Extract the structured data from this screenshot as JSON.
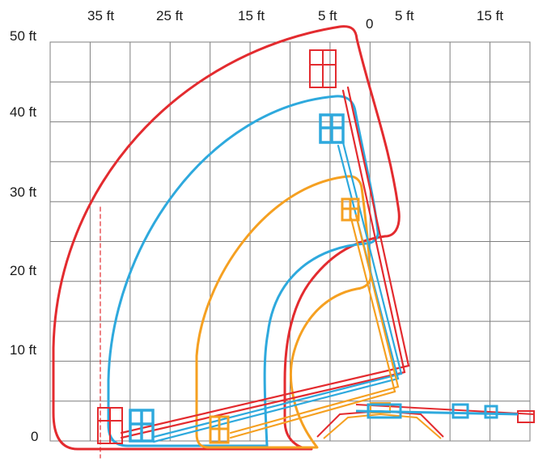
{
  "x_axis_labels": [
    "35 ft",
    "25 ft",
    "15 ft",
    "5 ft",
    "0",
    "5 ft",
    "15 ft"
  ],
  "y_axis_labels": [
    "50 ft",
    "40 ft",
    "30 ft",
    "20 ft",
    "10 ft",
    "0"
  ],
  "colors": {
    "grid": "#7f7f7f",
    "envelope_max": "#e32b2f",
    "envelope_mid": "#2ea9dd",
    "envelope_low": "#f5a021",
    "background": "#ffffff"
  },
  "envelopes": [
    {
      "color_key": "envelope_max",
      "icon": "work-platform-icon",
      "max_height_ft": 50,
      "max_outreach_ft": 40
    },
    {
      "color_key": "envelope_mid",
      "icon": "work-platform-icon",
      "max_height_ft": 43,
      "max_outreach_ft": 32
    },
    {
      "color_key": "envelope_low",
      "icon": "work-platform-icon",
      "max_height_ft": 33,
      "max_outreach_ft": 22
    }
  ]
}
